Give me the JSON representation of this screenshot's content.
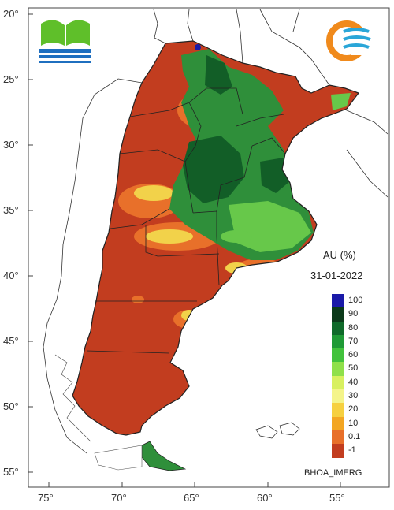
{
  "map": {
    "subject": "Argentina soil moisture (AU) map",
    "title": "AU (%)",
    "date": "31-01-2022",
    "product": "BHOA_IMERG",
    "lat_ticks": [
      "20°",
      "25°",
      "30°",
      "35°",
      "40°",
      "45°",
      "50°",
      "55°"
    ],
    "lon_ticks": [
      "75°",
      "70°",
      "65°",
      "60°",
      "55°"
    ],
    "legend": [
      {
        "label": "100",
        "color": "#1a1aa8"
      },
      {
        "label": "90",
        "color": "#0b3a1a"
      },
      {
        "label": "80",
        "color": "#0f6a2a"
      },
      {
        "label": "70",
        "color": "#1f9a36"
      },
      {
        "label": "60",
        "color": "#42c23c"
      },
      {
        "label": "50",
        "color": "#8fe04a"
      },
      {
        "label": "40",
        "color": "#d8f060"
      },
      {
        "label": "30",
        "color": "#f4f48a"
      },
      {
        "label": "20",
        "color": "#f6d040"
      },
      {
        "label": "10",
        "color": "#f3a623"
      },
      {
        "label": "0.1",
        "color": "#e8702a"
      },
      {
        "label": "-1",
        "color": "#c23d1f"
      }
    ],
    "colors": {
      "dry": "#c23d1f",
      "orange": "#e8702a",
      "yellow": "#f2d24a",
      "green": "#2f8f3a",
      "dark_green": "#125e27",
      "light_green": "#67c84a",
      "blue": "#1a1aa8"
    },
    "logos": {
      "left": "institutional-water-logo",
      "right": "waves-sun-logo"
    }
  }
}
